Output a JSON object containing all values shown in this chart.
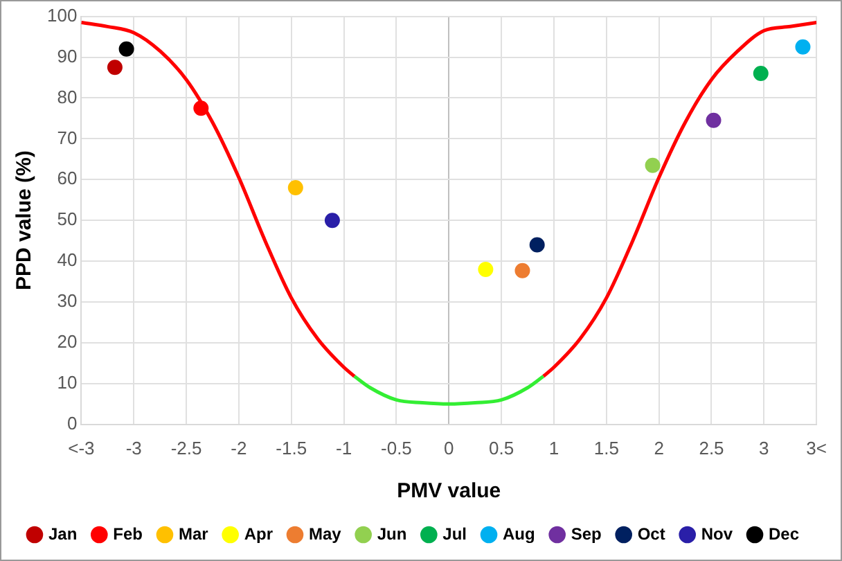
{
  "chart_data": {
    "type": "scatter",
    "xlabel": "PMV value",
    "ylabel": "PPD value (%)",
    "xlim": [
      -3.5,
      3.5
    ],
    "xticks": [
      {
        "value": -3.5,
        "label": "<-3"
      },
      -3,
      -2.5,
      -2,
      -1.5,
      -1,
      -0.5,
      0,
      0.5,
      1,
      1.5,
      2,
      2.5,
      3,
      {
        "value": 3.5,
        "label": "3<"
      }
    ],
    "ylim": [
      0,
      100
    ],
    "yticks": [
      0,
      10,
      20,
      30,
      40,
      50,
      60,
      70,
      80,
      90,
      100
    ],
    "grid": true,
    "legend": "bottom",
    "marker": "circle",
    "series": [
      {
        "type": "line",
        "marker": "none",
        "color": "#ff0000",
        "x": [
          -3.5,
          -3.25,
          -3,
          -2.75,
          -2.5,
          -2.25,
          -2,
          -1.75,
          -1.5,
          -1.25,
          -1,
          -0.9
        ],
        "values": [
          98.5,
          97.5,
          96,
          91.5,
          84.5,
          74,
          60.5,
          45,
          31,
          21,
          14,
          11.8
        ]
      },
      {
        "type": "line",
        "marker": "none",
        "color": "#33ee33",
        "x": [
          -0.9,
          -0.75,
          -0.5,
          -0.25,
          0,
          0.25,
          0.5,
          0.75,
          0.9
        ],
        "values": [
          11.8,
          9,
          6,
          5.3,
          5,
          5.3,
          6,
          9,
          11.8
        ]
      },
      {
        "type": "line",
        "marker": "none",
        "color": "#ff0000",
        "x": [
          0.9,
          1,
          1.25,
          1.5,
          1.75,
          2,
          2.25,
          2.5,
          2.75,
          3,
          3.25,
          3.5
        ],
        "values": [
          11.8,
          14,
          21,
          31,
          45,
          60.5,
          74,
          84.5,
          91.5,
          96.5,
          97.5,
          98.5
        ]
      },
      {
        "name": "Jan",
        "color": "#c00000",
        "x": [
          -3.18
        ],
        "values": [
          87.5
        ]
      },
      {
        "name": "Feb",
        "color": "#ff0000",
        "x": [
          -2.36
        ],
        "values": [
          77.5
        ]
      },
      {
        "name": "Mar",
        "color": "#ffc000",
        "x": [
          -1.46
        ],
        "values": [
          58
        ]
      },
      {
        "name": "Apr",
        "color": "#ffff00",
        "x": [
          0.35
        ],
        "values": [
          38
        ]
      },
      {
        "name": "May",
        "color": "#ed7d31",
        "x": [
          0.7
        ],
        "values": [
          37.7
        ]
      },
      {
        "name": "Jun",
        "color": "#92d050",
        "x": [
          1.94
        ],
        "values": [
          63.5
        ]
      },
      {
        "name": "Jul",
        "color": "#00b050",
        "x": [
          2.97
        ],
        "values": [
          86
        ]
      },
      {
        "name": "Aug",
        "color": "#00b0f0",
        "x": [
          3.37
        ],
        "values": [
          92.5
        ]
      },
      {
        "name": "Sep",
        "color": "#7030a0",
        "x": [
          2.52
        ],
        "values": [
          74.5
        ]
      },
      {
        "name": "Oct",
        "color": "#002060",
        "x": [
          0.84
        ],
        "values": [
          44
        ]
      },
      {
        "name": "Nov",
        "color": "#2a1fa8",
        "x": [
          -1.11
        ],
        "values": [
          50
        ]
      },
      {
        "name": "Dec",
        "color": "#000000",
        "x": [
          -3.07
        ],
        "values": [
          92
        ]
      }
    ]
  }
}
